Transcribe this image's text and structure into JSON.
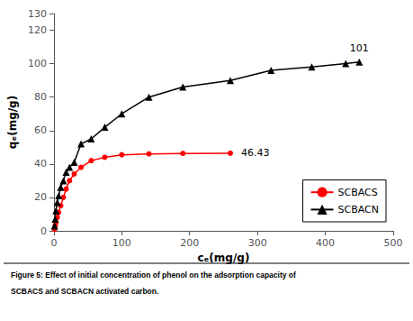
{
  "chart_data": {
    "type": "line",
    "xlabel": "cₑ(mg/g)",
    "ylabel": "qₑ(mg/g)",
    "xlim": [
      0,
      500
    ],
    "ylim": [
      0,
      130
    ],
    "xticks": [
      0,
      100,
      200,
      300,
      400,
      500
    ],
    "yticks": [
      0,
      20,
      40,
      60,
      80,
      100,
      120
    ],
    "grid": false,
    "legend": "lower right",
    "series": [
      {
        "name": "SCBACS",
        "color": "#ff0000",
        "marker": "circle",
        "line_style": "solid",
        "x": [
          1,
          2,
          3,
          5,
          7,
          10,
          14,
          18,
          23,
          30,
          40,
          55,
          75,
          100,
          140,
          190,
          260
        ],
        "values": [
          1,
          3,
          5,
          8,
          11,
          15,
          20,
          25,
          30,
          34,
          38,
          42,
          44,
          45.5,
          46,
          46.3,
          46.43
        ]
      },
      {
        "name": "SCBACN",
        "color": "#000000",
        "marker": "triangle",
        "line_style": "solid",
        "x": [
          1,
          2,
          3,
          5,
          7,
          10,
          14,
          18,
          23,
          30,
          40,
          55,
          75,
          100,
          140,
          190,
          260,
          320,
          380,
          430,
          450
        ],
        "values": [
          3,
          7,
          12,
          17,
          21,
          26,
          30,
          35,
          38,
          41,
          52,
          55,
          62,
          70,
          80,
          86,
          90,
          96,
          98,
          100,
          101
        ]
      }
    ],
    "annotations": [
      {
        "text": "46.43",
        "x": 260,
        "y": 46.43
      },
      {
        "text": "101",
        "x": 450,
        "y": 101
      }
    ],
    "caption": [
      "Figure 5: Effect of initial concentration of phenol on the adsorption capacity of",
      "SCBACS and SCBACN activated carbon."
    ]
  }
}
